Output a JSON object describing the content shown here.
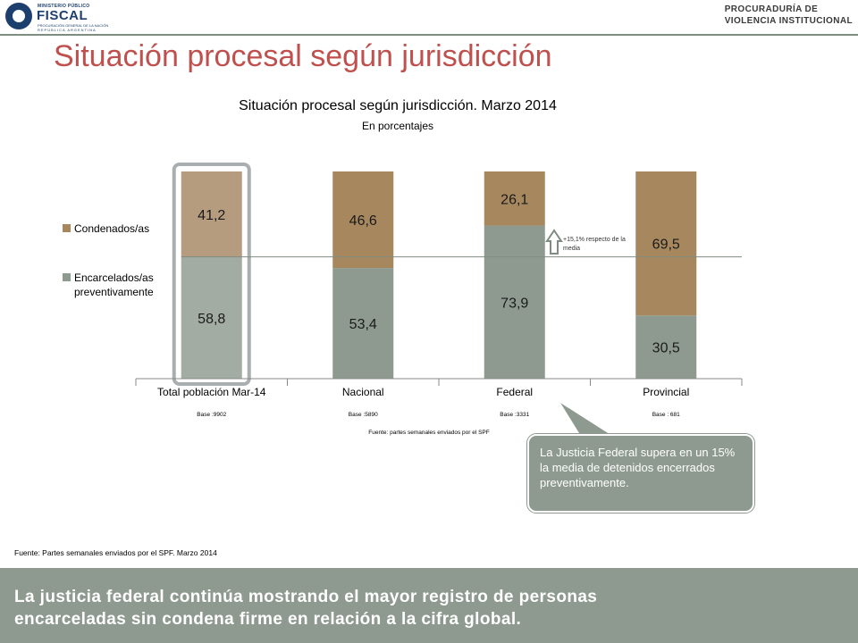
{
  "header": {
    "logo_left": {
      "small": "MINISTERIO PÚBLICO",
      "big": "FISCAL",
      "sub1": "PROCURACIÓN GENERAL DE LA NACIÓN",
      "sub2": "REPÚBLICA ARGENTINA"
    },
    "logo_right": {
      "line1": "PROCURADURÍA DE",
      "line2": "VIOLENCIA INSTITUCIONAL"
    }
  },
  "page_title": "Situación procesal según jurisdicción",
  "chart_data": {
    "type": "bar",
    "stacked": true,
    "title": "Situación procesal según jurisdicción. Marzo 2014",
    "subtitle": "En porcentajes",
    "categories": [
      "Total población Mar-14",
      "Nacional",
      "Federal",
      "Provincial"
    ],
    "bases": [
      "Base :9902",
      "Base :5890",
      "Base :3331",
      "Base : 681"
    ],
    "series": [
      {
        "name": "Encarcelados/as preventivamente",
        "values": [
          58.8,
          53.4,
          73.9,
          30.5
        ],
        "labels": [
          "58,8",
          "53,4",
          "73,9",
          "30,5"
        ],
        "color": "#8e9a8f",
        "color_highlight": "#a2aca3"
      },
      {
        "name": "Condenados/as",
        "values": [
          41.2,
          46.6,
          26.1,
          69.5
        ],
        "labels": [
          "41,2",
          "46,6",
          "26,1",
          "69,5"
        ],
        "color": "#a6875e",
        "color_highlight": "#b59c7e"
      }
    ],
    "ylim": [
      0,
      100
    ],
    "reference_line": 58.8,
    "highlighted_category": "Total población Mar-14",
    "legend": "left",
    "source_note": "Fuente: partes semanales enviados por el SPF",
    "arrow_note": "+15,1% respecto de la media"
  },
  "callout": "La Justicia Federal supera en un 15% la media de detenidos encerrados preventivamente.",
  "source": "Fuente: Partes semanales enviados por el SPF. Marzo 2014",
  "footer": {
    "line1": "La justicia federal continúa mostrando el mayor registro de personas",
    "line2": "encarceladas sin condena firme en relación a la cifra global."
  },
  "colors": {
    "title_red": "#c0504d",
    "footer_bg": "#8e9a8f",
    "highlight_frame": "#a9afb0"
  }
}
